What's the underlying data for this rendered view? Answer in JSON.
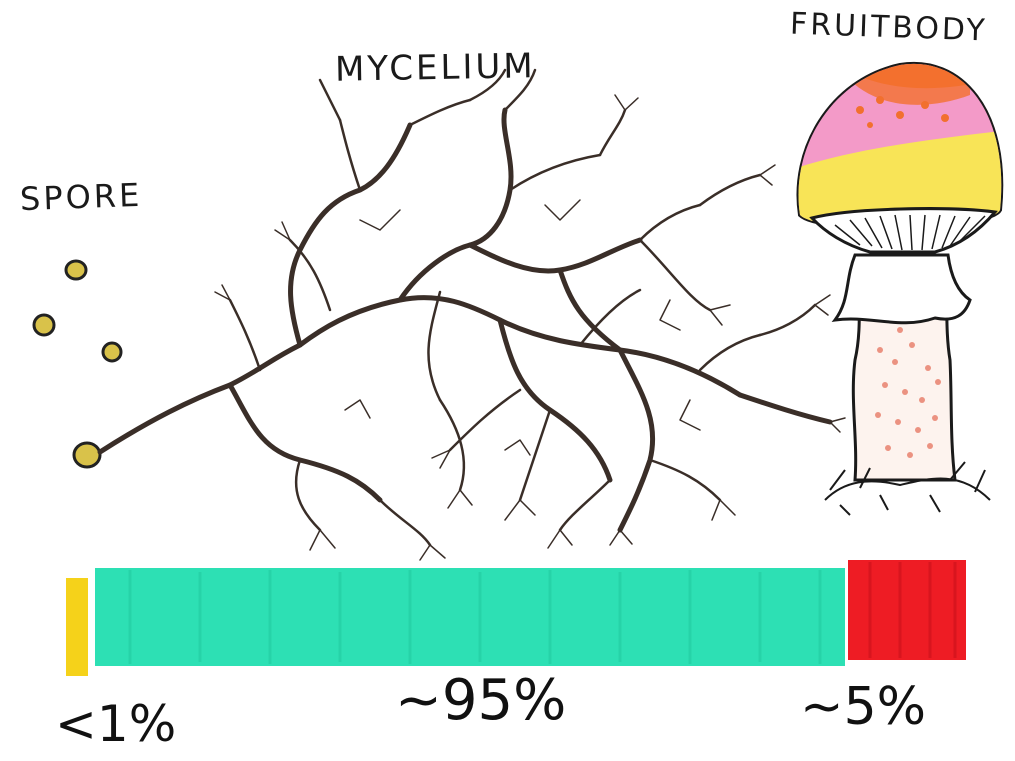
{
  "labels": {
    "spore": "SPORE",
    "mycelium": "MYCELIUM",
    "fruitbody": "FRUITBODY"
  },
  "proportions": {
    "spore": "<1%",
    "mycelium": "~95%",
    "fruitbody": "~5%"
  },
  "colors": {
    "spore_bar": "#f5d21a",
    "mycelium_bar": "#2de0b4",
    "fruitbody_bar": "#ee1c24",
    "spore_fill": "#d9c24a",
    "mycelium_line": "#3a2e28",
    "cap_pink": "#f39ac8",
    "cap_orange": "#f2702e",
    "cap_yellow": "#f8ec4a",
    "stem_spots": "#e8826e"
  }
}
